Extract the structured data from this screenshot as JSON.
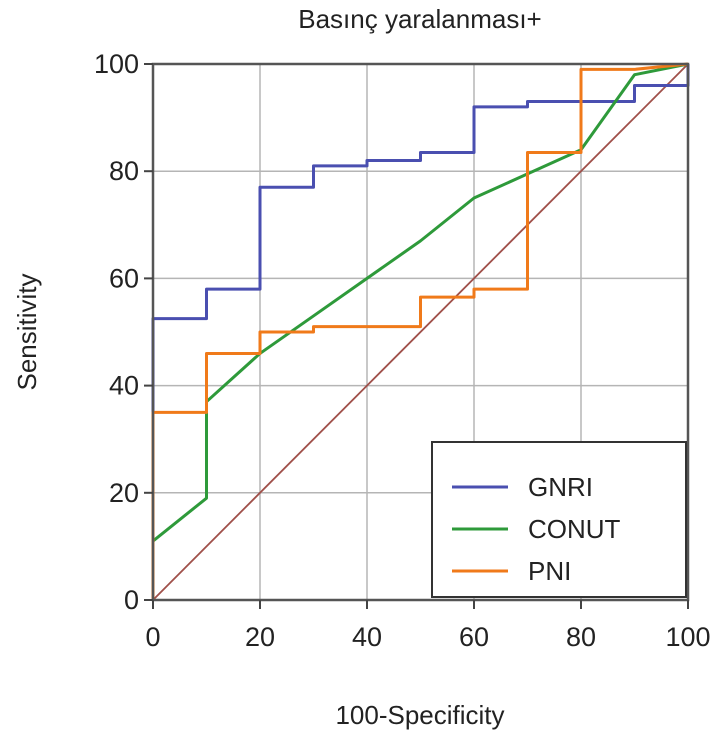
{
  "chart_data": {
    "type": "line",
    "title": "Basınç yaralanması+",
    "xlabel": "100-Specificity",
    "ylabel": "Sensitivity",
    "xlim": [
      0,
      100
    ],
    "ylim": [
      0,
      100
    ],
    "xticks": [
      0,
      20,
      40,
      60,
      80,
      100
    ],
    "yticks": [
      0,
      20,
      40,
      60,
      80,
      100
    ],
    "grid": true,
    "legend_position": "bottom-right",
    "series": [
      {
        "name": "GNRI",
        "color": "#4a4fb0",
        "x": [
          0,
          0,
          10,
          10,
          20,
          20,
          30,
          30,
          40,
          40,
          50,
          50,
          60,
          60,
          70,
          70,
          80,
          80,
          90,
          90,
          100,
          100
        ],
        "y": [
          0,
          52.5,
          52.5,
          58,
          58,
          77,
          77,
          81,
          81,
          82,
          82,
          83.5,
          83.5,
          92,
          92,
          93,
          93,
          93,
          93,
          96,
          96,
          100
        ]
      },
      {
        "name": "CONUT",
        "color": "#2e9a3a",
        "x": [
          0,
          0,
          10,
          10,
          20,
          30,
          40,
          50,
          60,
          70,
          80,
          90,
          100
        ],
        "y": [
          0,
          11,
          19,
          37,
          46,
          53,
          60,
          67,
          75,
          79.5,
          84,
          98,
          100
        ]
      },
      {
        "name": "PNI",
        "color": "#f07a1a",
        "x": [
          0,
          0,
          10,
          10,
          20,
          20,
          30,
          30,
          50,
          50,
          60,
          60,
          70,
          70,
          80,
          80,
          90,
          100
        ],
        "y": [
          0,
          35,
          35,
          46,
          46,
          50,
          50,
          51,
          51,
          56.5,
          56.5,
          58,
          58,
          83.5,
          83.5,
          99,
          99,
          100
        ]
      },
      {
        "name": "",
        "color": "#a0504a",
        "x": [
          0,
          100
        ],
        "y": [
          0,
          100
        ]
      }
    ]
  }
}
